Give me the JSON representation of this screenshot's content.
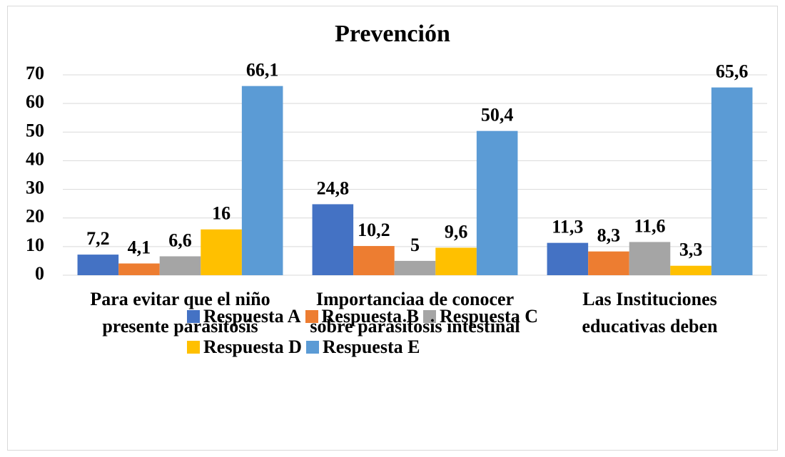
{
  "chart_data": {
    "type": "bar",
    "title": "Prevención",
    "categories": [
      "Para evitar que el niño presente parasitosis",
      "Importanciaa de conocer sobre parasitosis intestinal",
      "Las Instituciones educativas deben"
    ],
    "series": [
      {
        "name": "Respuesta A",
        "color": "#4472c4",
        "values": [
          7.2,
          24.8,
          11.3
        ],
        "value_labels": [
          "7,2",
          "24,8",
          "11,3"
        ]
      },
      {
        "name": "Respuesta B",
        "color": "#ed7d31",
        "values": [
          4.1,
          10.2,
          8.3
        ],
        "value_labels": [
          "4,1",
          "10,2",
          "8,3"
        ]
      },
      {
        "name": "Respuesta C",
        "color": "#a5a5a5",
        "values": [
          6.6,
          5,
          11.6
        ],
        "value_labels": [
          "6,6",
          "5",
          "11,6"
        ]
      },
      {
        "name": "Respuesta D",
        "color": "#ffc000",
        "values": [
          16,
          9.6,
          3.3
        ],
        "value_labels": [
          "16",
          "9,6",
          "3,3"
        ]
      },
      {
        "name": "Respuesta E",
        "color": "#5b9bd5",
        "values": [
          66.1,
          50.4,
          65.6
        ],
        "value_labels": [
          "66,1",
          "50,4",
          "65,6"
        ]
      }
    ],
    "ylim": [
      0,
      70
    ],
    "yticks": [
      0,
      10,
      20,
      30,
      40,
      50,
      60,
      70
    ],
    "grid": true,
    "legend": "bottom"
  }
}
